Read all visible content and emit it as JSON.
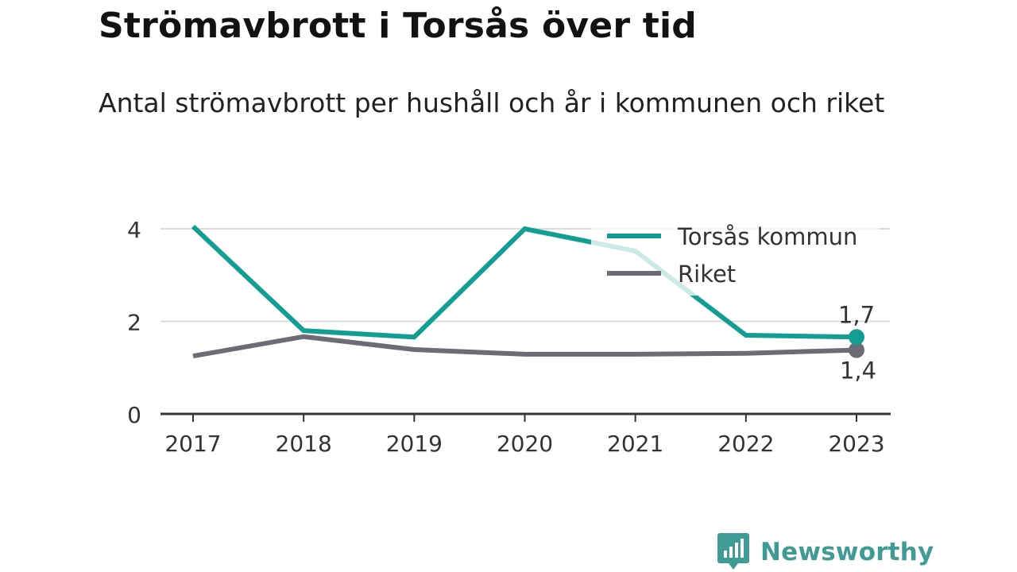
{
  "title": "Strömavbrott i Torsås över tid",
  "subtitle": "Antal strömavbrott per hushåll och år i kommunen och riket",
  "chart_data": {
    "type": "line",
    "title": "Strömavbrott i Torsås över tid",
    "subtitle": "Antal strömavbrott per hushåll och år i kommunen och riket",
    "xlabel": "",
    "ylabel": "",
    "x": [
      "2017",
      "2018",
      "2019",
      "2020",
      "2021",
      "2022",
      "2023"
    ],
    "ylim": [
      0,
      4.2
    ],
    "yticks": [
      "0",
      "2",
      "4"
    ],
    "grid": true,
    "legend": "top-right",
    "series": [
      {
        "name": "Torsås kommun",
        "color": "#139e93",
        "values": [
          4.05,
          1.8,
          1.66,
          4.0,
          3.52,
          1.7,
          1.66
        ],
        "end_label": "1,7"
      },
      {
        "name": "Riket",
        "color": "#6d6c74",
        "values": [
          1.25,
          1.67,
          1.39,
          1.29,
          1.29,
          1.31,
          1.38
        ],
        "end_label": "1,4"
      }
    ]
  },
  "brand": {
    "name": "Newsworthy",
    "color": "#3f9b93",
    "icon": "newsworthy-logo-icon"
  }
}
